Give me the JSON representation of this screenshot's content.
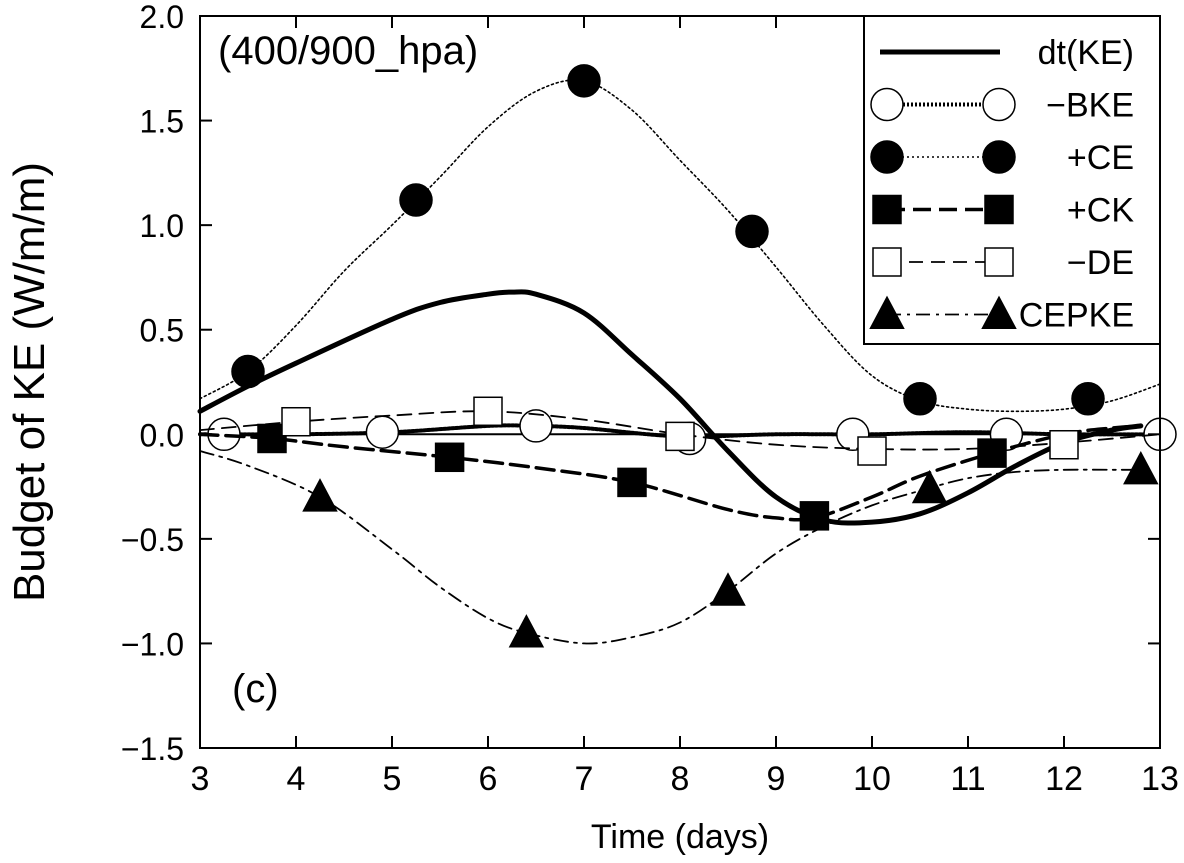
{
  "chart_data": {
    "type": "line",
    "title": "",
    "panel_label": "(400/900_hpa)",
    "corner_label": "(c)",
    "xlabel": "Time (days)",
    "ylabel": "Budget of KE (W/m/m)",
    "xlim": [
      3,
      13
    ],
    "ylim": [
      -1.5,
      2.0
    ],
    "xticks": [
      3,
      4,
      5,
      6,
      7,
      8,
      9,
      10,
      11,
      12,
      13
    ],
    "yticks": [
      -1.5,
      -1.0,
      -0.5,
      0.0,
      0.5,
      1.0,
      1.5,
      2.0
    ],
    "ytick_labels": [
      "−1.5",
      "−1.0",
      "−0.5",
      "0.0",
      "0.5",
      "1.0",
      "1.5",
      "2.0"
    ],
    "zero_line": true,
    "grid": false,
    "legend_position": "top-right",
    "series": [
      {
        "name": "dt(KE)",
        "line": "solid-thick",
        "marker": "none",
        "curve": [
          [
            3,
            0.11
          ],
          [
            3.5,
            0.23
          ],
          [
            4,
            0.34
          ],
          [
            5,
            0.55
          ],
          [
            5.5,
            0.63
          ],
          [
            6,
            0.67
          ],
          [
            6.25,
            0.68
          ],
          [
            6.5,
            0.67
          ],
          [
            7,
            0.58
          ],
          [
            7.5,
            0.38
          ],
          [
            8,
            0.17
          ],
          [
            8.5,
            -0.08
          ],
          [
            9,
            -0.3
          ],
          [
            9.5,
            -0.41
          ],
          [
            10,
            -0.42
          ],
          [
            10.5,
            -0.38
          ],
          [
            11,
            -0.28
          ],
          [
            11.5,
            -0.15
          ],
          [
            12,
            -0.04
          ],
          [
            12.5,
            0.02
          ],
          [
            12.8,
            0.04
          ]
        ],
        "points": []
      },
      {
        "name": "−BKE",
        "line": "dotted-thick",
        "marker": "open-circle",
        "curve": [
          [
            3,
            0.0
          ],
          [
            4,
            0.0
          ],
          [
            5,
            0.01
          ],
          [
            6,
            0.04
          ],
          [
            6.5,
            0.04
          ],
          [
            7,
            0.03
          ],
          [
            8,
            -0.01
          ],
          [
            9,
            0.0
          ],
          [
            10,
            0.0
          ],
          [
            11,
            0.01
          ],
          [
            12,
            0.0
          ],
          [
            13,
            0.0
          ]
        ],
        "points": [
          [
            3.25,
            0.0
          ],
          [
            4.9,
            0.01
          ],
          [
            6.5,
            0.04
          ],
          [
            8.1,
            -0.02
          ],
          [
            9.8,
            0.0
          ],
          [
            11.4,
            0.0
          ],
          [
            13,
            0.0
          ]
        ]
      },
      {
        "name": "+CE",
        "line": "dotted-thin",
        "marker": "filled-circle",
        "curve": [
          [
            3,
            0.17
          ],
          [
            3.5,
            0.3
          ],
          [
            4,
            0.52
          ],
          [
            4.5,
            0.78
          ],
          [
            5,
            1.0
          ],
          [
            5.5,
            1.23
          ],
          [
            6,
            1.47
          ],
          [
            6.5,
            1.64
          ],
          [
            7,
            1.69
          ],
          [
            7.5,
            1.55
          ],
          [
            8,
            1.31
          ],
          [
            8.5,
            1.07
          ],
          [
            9,
            0.8
          ],
          [
            9.5,
            0.52
          ],
          [
            10,
            0.28
          ],
          [
            10.5,
            0.16
          ],
          [
            11,
            0.12
          ],
          [
            11.5,
            0.11
          ],
          [
            12,
            0.12
          ],
          [
            12.5,
            0.16
          ],
          [
            13,
            0.24
          ]
        ],
        "points": [
          [
            3.5,
            0.3
          ],
          [
            5.25,
            1.12
          ],
          [
            7,
            1.69
          ],
          [
            8.75,
            0.97
          ],
          [
            10.5,
            0.17
          ],
          [
            12.25,
            0.17
          ]
        ]
      },
      {
        "name": "+CK",
        "line": "dashed-thick",
        "marker": "filled-square",
        "curve": [
          [
            3,
            0.0
          ],
          [
            3.75,
            -0.02
          ],
          [
            4.5,
            -0.06
          ],
          [
            5.6,
            -0.11
          ],
          [
            6.5,
            -0.16
          ],
          [
            7.5,
            -0.23
          ],
          [
            8.5,
            -0.36
          ],
          [
            9,
            -0.4
          ],
          [
            9.4,
            -0.4
          ],
          [
            10,
            -0.3
          ],
          [
            10.5,
            -0.2
          ],
          [
            11.25,
            -0.09
          ],
          [
            12,
            0.0
          ],
          [
            12.5,
            0.03
          ],
          [
            12.8,
            0.04
          ]
        ],
        "points": [
          [
            3.75,
            -0.02
          ],
          [
            5.6,
            -0.11
          ],
          [
            7.5,
            -0.23
          ],
          [
            9.4,
            -0.39
          ],
          [
            11.25,
            -0.09
          ]
        ]
      },
      {
        "name": "−DE",
        "line": "dashed-thin",
        "marker": "open-square",
        "curve": [
          [
            3,
            0.02
          ],
          [
            4,
            0.06
          ],
          [
            5,
            0.09
          ],
          [
            6,
            0.11
          ],
          [
            7,
            0.07
          ],
          [
            8,
            0.0
          ],
          [
            9,
            -0.05
          ],
          [
            10,
            -0.07
          ],
          [
            11,
            -0.07
          ],
          [
            12,
            -0.04
          ],
          [
            13,
            0.0
          ]
        ],
        "points": [
          [
            4,
            0.06
          ],
          [
            6,
            0.11
          ],
          [
            8,
            -0.01
          ],
          [
            10,
            -0.08
          ],
          [
            12,
            -0.05
          ]
        ]
      },
      {
        "name": "CEPKE",
        "line": "dash-dot",
        "marker": "filled-triangle",
        "curve": [
          [
            3,
            -0.08
          ],
          [
            3.5,
            -0.15
          ],
          [
            4.25,
            -0.3
          ],
          [
            5,
            -0.55
          ],
          [
            5.5,
            -0.73
          ],
          [
            6,
            -0.88
          ],
          [
            6.4,
            -0.95
          ],
          [
            7,
            -1.0
          ],
          [
            7.5,
            -0.97
          ],
          [
            8,
            -0.9
          ],
          [
            8.5,
            -0.75
          ],
          [
            9,
            -0.57
          ],
          [
            9.5,
            -0.44
          ],
          [
            10,
            -0.34
          ],
          [
            10.5,
            -0.27
          ],
          [
            11,
            -0.21
          ],
          [
            11.5,
            -0.18
          ],
          [
            12,
            -0.17
          ],
          [
            12.5,
            -0.17
          ],
          [
            12.8,
            -0.17
          ]
        ],
        "points": [
          [
            4.25,
            -0.3
          ],
          [
            6.4,
            -0.95
          ],
          [
            8.5,
            -0.75
          ],
          [
            10.6,
            -0.26
          ],
          [
            12.8,
            -0.17
          ]
        ]
      }
    ]
  }
}
